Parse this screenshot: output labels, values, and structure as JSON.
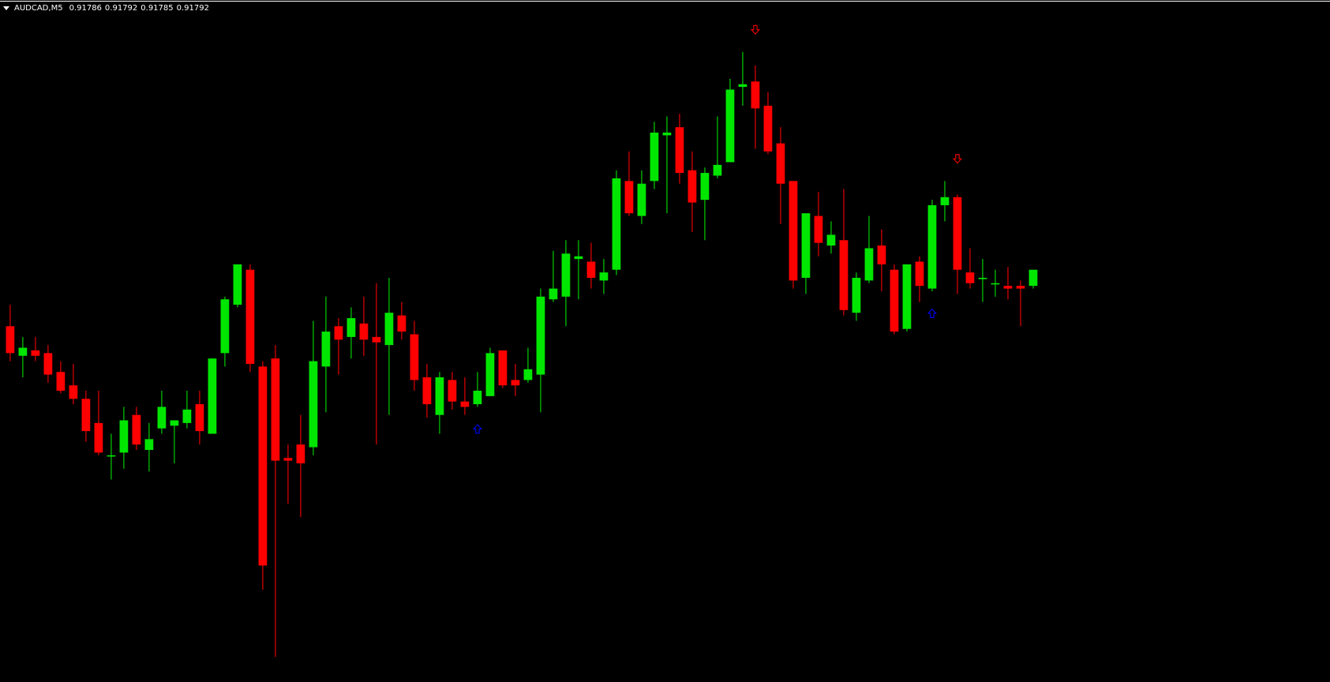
{
  "header": {
    "symbol_timeframe": "AUDCAD,M5",
    "open": "0.91786",
    "high": "0.91792",
    "low": "0.91785",
    "close": "0.91792",
    "menu_icon": "triangle-down-icon"
  },
  "colors": {
    "background": "#000000",
    "bull": "#00e600",
    "bear": "#ff0000",
    "signal_buy": "#0000ff",
    "signal_sell": "#ff0000",
    "text": "#ffffff"
  },
  "chart_data": {
    "type": "candlestick",
    "symbol": "AUDCAD",
    "timeframe": "M5",
    "grid": false,
    "ohlc_order": [
      "open",
      "high",
      "low",
      "close"
    ],
    "candles": [
      [
        0.91771,
        0.91779,
        0.91758,
        0.91761
      ],
      [
        0.9176,
        0.91767,
        0.91752,
        0.91763
      ],
      [
        0.91762,
        0.91767,
        0.91758,
        0.9176
      ],
      [
        0.91761,
        0.91764,
        0.9175,
        0.91753
      ],
      [
        0.91754,
        0.91758,
        0.91746,
        0.91747
      ],
      [
        0.91749,
        0.91757,
        0.91742,
        0.91744
      ],
      [
        0.91744,
        0.91747,
        0.91728,
        0.91732
      ],
      [
        0.91735,
        0.91747,
        0.91723,
        0.91724
      ],
      [
        0.91723,
        0.91731,
        0.91714,
        0.91723
      ],
      [
        0.91724,
        0.91741,
        0.91718,
        0.91736
      ],
      [
        0.91738,
        0.91741,
        0.91725,
        0.91727
      ],
      [
        0.91725,
        0.91735,
        0.91717,
        0.91729
      ],
      [
        0.91733,
        0.91747,
        0.91731,
        0.91741
      ],
      [
        0.91734,
        0.91736,
        0.9172,
        0.91736
      ],
      [
        0.91735,
        0.91747,
        0.91733,
        0.9174
      ],
      [
        0.91742,
        0.91747,
        0.91727,
        0.91732
      ],
      [
        0.91731,
        0.91759,
        0.91731,
        0.91759
      ],
      [
        0.91761,
        0.91782,
        0.91756,
        0.91781
      ],
      [
        0.91779,
        0.91794,
        0.91778,
        0.91794
      ],
      [
        0.91792,
        0.91794,
        0.91754,
        0.91757
      ],
      [
        0.91756,
        0.91758,
        0.91673,
        0.91682
      ],
      [
        0.91759,
        0.91764,
        0.91648,
        0.91721
      ],
      [
        0.91722,
        0.91727,
        0.91705,
        0.91721
      ],
      [
        0.91727,
        0.91738,
        0.917,
        0.9172
      ],
      [
        0.91726,
        0.91773,
        0.91723,
        0.91758
      ],
      [
        0.91756,
        0.91782,
        0.91739,
        0.91769
      ],
      [
        0.91771,
        0.91774,
        0.91753,
        0.91766
      ],
      [
        0.91767,
        0.91778,
        0.91759,
        0.91774
      ],
      [
        0.91772,
        0.91782,
        0.9176,
        0.91766
      ],
      [
        0.91767,
        0.91787,
        0.91727,
        0.91765
      ],
      [
        0.91764,
        0.91789,
        0.91738,
        0.91776
      ],
      [
        0.91775,
        0.9178,
        0.91766,
        0.91769
      ],
      [
        0.91768,
        0.91773,
        0.91747,
        0.91751
      ],
      [
        0.91752,
        0.91757,
        0.91737,
        0.91742
      ],
      [
        0.91738,
        0.91754,
        0.91731,
        0.91752
      ],
      [
        0.91751,
        0.91754,
        0.9174,
        0.91743
      ],
      [
        0.91743,
        0.91752,
        0.91738,
        0.91741
      ],
      [
        0.91742,
        0.91754,
        0.91741,
        0.91747
      ],
      [
        0.91745,
        0.91763,
        0.91745,
        0.91761
      ],
      [
        0.91762,
        0.91762,
        0.91748,
        0.91749
      ],
      [
        0.91751,
        0.91757,
        0.91745,
        0.91749
      ],
      [
        0.91751,
        0.91763,
        0.9175,
        0.91755
      ],
      [
        0.91753,
        0.91785,
        0.91739,
        0.91782
      ],
      [
        0.91781,
        0.91799,
        0.9178,
        0.91785
      ],
      [
        0.91782,
        0.91803,
        0.91771,
        0.91798
      ],
      [
        0.91796,
        0.91803,
        0.91781,
        0.91797
      ],
      [
        0.91795,
        0.91802,
        0.91785,
        0.91789
      ],
      [
        0.91788,
        0.91796,
        0.91783,
        0.91791
      ],
      [
        0.91792,
        0.91829,
        0.9179,
        0.91826
      ],
      [
        0.91825,
        0.91836,
        0.91812,
        0.91813
      ],
      [
        0.91812,
        0.91829,
        0.91809,
        0.91824
      ],
      [
        0.91825,
        0.91847,
        0.91822,
        0.91843
      ],
      [
        0.91842,
        0.91849,
        0.91813,
        0.91843
      ],
      [
        0.91845,
        0.9185,
        0.91824,
        0.91828
      ],
      [
        0.91829,
        0.91836,
        0.91806,
        0.91817
      ],
      [
        0.91818,
        0.9183,
        0.91803,
        0.91828
      ],
      [
        0.91827,
        0.91849,
        0.91826,
        0.91831
      ],
      [
        0.91832,
        0.91863,
        0.91832,
        0.91859
      ],
      [
        0.9186,
        0.91873,
        0.91853,
        0.91861
      ],
      [
        0.91862,
        0.91868,
        0.91837,
        0.91852
      ],
      [
        0.91853,
        0.91858,
        0.91835,
        0.91836
      ],
      [
        0.91839,
        0.91845,
        0.91809,
        0.91824
      ],
      [
        0.91825,
        0.91825,
        0.91785,
        0.91788
      ],
      [
        0.91789,
        0.91813,
        0.91783,
        0.91813
      ],
      [
        0.91812,
        0.91821,
        0.91797,
        0.91802
      ],
      [
        0.91801,
        0.9181,
        0.91798,
        0.91805
      ],
      [
        0.91803,
        0.91822,
        0.91775,
        0.91777
      ],
      [
        0.91776,
        0.91791,
        0.91773,
        0.91789
      ],
      [
        0.91788,
        0.91812,
        0.91787,
        0.918
      ],
      [
        0.91801,
        0.91807,
        0.91784,
        0.91794
      ],
      [
        0.91792,
        0.91794,
        0.91768,
        0.91769
      ],
      [
        0.9177,
        0.91794,
        0.91769,
        0.91794
      ],
      [
        0.91795,
        0.91797,
        0.9178,
        0.91786
      ],
      [
        0.91785,
        0.91818,
        0.91784,
        0.91816
      ],
      [
        0.91816,
        0.91825,
        0.9181,
        0.91819
      ],
      [
        0.91819,
        0.9182,
        0.91783,
        0.91792
      ],
      [
        0.91791,
        0.918,
        0.91785,
        0.91787
      ],
      [
        0.91789,
        0.91796,
        0.9178,
        0.91789
      ],
      [
        0.91787,
        0.91792,
        0.91782,
        0.91787
      ],
      [
        0.91786,
        0.91793,
        0.91781,
        0.91785
      ],
      [
        0.91786,
        0.91788,
        0.91771,
        0.91785
      ],
      [
        0.91786,
        0.91792,
        0.91785,
        0.91792
      ]
    ],
    "signals": [
      {
        "candle": 37,
        "type": "buy",
        "icon": "arrow-up-outline-icon"
      },
      {
        "candle": 59,
        "type": "sell",
        "icon": "arrow-down-outline-icon"
      },
      {
        "candle": 73,
        "type": "buy",
        "icon": "arrow-up-outline-icon"
      },
      {
        "candle": 75,
        "type": "sell",
        "icon": "arrow-down-outline-icon"
      }
    ]
  }
}
